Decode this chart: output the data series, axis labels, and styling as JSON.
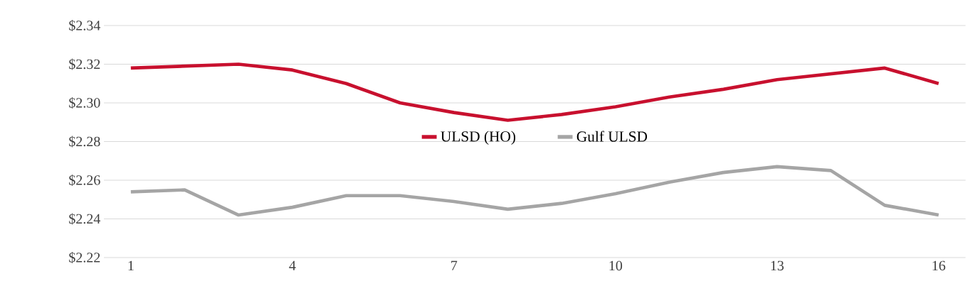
{
  "chart_data": {
    "type": "line",
    "x": [
      1,
      2,
      3,
      4,
      5,
      6,
      7,
      8,
      9,
      10,
      11,
      12,
      13,
      14,
      15,
      16
    ],
    "series": [
      {
        "name": "ULSD (HO)",
        "color": "#c8102e",
        "values": [
          2.318,
          2.319,
          2.32,
          2.317,
          2.31,
          2.3,
          2.295,
          2.291,
          2.294,
          2.298,
          2.303,
          2.307,
          2.312,
          2.315,
          2.318,
          2.31
        ]
      },
      {
        "name": "Gulf ULSD",
        "color": "#a5a5a5",
        "values": [
          2.254,
          2.255,
          2.242,
          2.246,
          2.252,
          2.252,
          2.249,
          2.245,
          2.248,
          2.253,
          2.259,
          2.264,
          2.267,
          2.265,
          2.247,
          2.242
        ]
      }
    ],
    "xlim": [
      0.5,
      16.5
    ],
    "xticks": [
      1,
      4,
      7,
      10,
      13,
      16
    ],
    "ylim": [
      2.22,
      2.34
    ],
    "yticks": [
      {
        "value": 2.22,
        "label": "$2.22"
      },
      {
        "value": 2.24,
        "label": "$2.24"
      },
      {
        "value": 2.26,
        "label": "$2.26"
      },
      {
        "value": 2.28,
        "label": "$2.28"
      },
      {
        "value": 2.3,
        "label": "$2.30"
      },
      {
        "value": 2.32,
        "label": "$2.32"
      },
      {
        "value": 2.34,
        "label": "$2.34"
      }
    ],
    "grid": "y",
    "legend": "center",
    "marker": "none",
    "line_style": "solid"
  }
}
